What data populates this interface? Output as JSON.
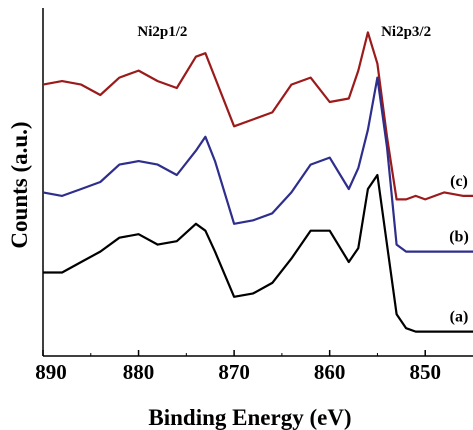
{
  "chart_data": {
    "type": "line",
    "xlabel": "Binding Energy (eV)",
    "ylabel": "Counts (a.u.)",
    "xlim": [
      890,
      845
    ],
    "xticks": [
      890,
      880,
      870,
      860,
      850
    ],
    "yticks_shown": false,
    "annotations": [
      {
        "text": "Ni2p1/2",
        "x": 877.5
      },
      {
        "text": "Ni2p3/2",
        "x": 852
      }
    ],
    "series": [
      {
        "label": "(c)",
        "color": "#9b1b1b",
        "x": [
          890,
          888,
          886,
          884,
          882,
          880,
          878,
          876,
          874,
          873,
          872,
          870,
          868,
          866,
          864,
          862,
          860,
          858,
          857,
          856,
          855,
          854,
          853,
          852,
          851,
          850,
          848,
          846,
          845
        ],
        "y": [
          0.78,
          0.79,
          0.78,
          0.75,
          0.8,
          0.82,
          0.79,
          0.77,
          0.86,
          0.87,
          0.8,
          0.66,
          0.68,
          0.7,
          0.78,
          0.8,
          0.73,
          0.74,
          0.82,
          0.93,
          0.84,
          0.63,
          0.45,
          0.45,
          0.46,
          0.45,
          0.47,
          0.46,
          0.46
        ]
      },
      {
        "label": "(b)",
        "color": "#2e2e8c",
        "x": [
          890,
          888,
          886,
          884,
          882,
          880,
          878,
          876,
          874,
          873,
          872,
          870,
          868,
          866,
          864,
          862,
          860,
          858,
          857,
          856,
          855,
          854,
          853,
          852,
          850,
          848,
          846,
          845
        ],
        "y": [
          0.47,
          0.46,
          0.48,
          0.5,
          0.55,
          0.56,
          0.55,
          0.52,
          0.59,
          0.63,
          0.56,
          0.38,
          0.39,
          0.41,
          0.47,
          0.55,
          0.57,
          0.48,
          0.54,
          0.65,
          0.8,
          0.6,
          0.32,
          0.3,
          0.3,
          0.3,
          0.3,
          0.3
        ]
      },
      {
        "label": "(a)",
        "color": "#000000",
        "x": [
          890,
          888,
          886,
          884,
          882,
          880,
          878,
          876,
          874,
          873,
          872,
          870,
          868,
          866,
          864,
          862,
          860,
          858,
          857,
          856,
          855,
          854,
          853,
          852,
          851,
          850,
          848,
          846,
          845
        ],
        "y": [
          0.24,
          0.24,
          0.27,
          0.3,
          0.34,
          0.35,
          0.32,
          0.33,
          0.38,
          0.36,
          0.3,
          0.17,
          0.18,
          0.21,
          0.28,
          0.36,
          0.36,
          0.27,
          0.31,
          0.48,
          0.52,
          0.32,
          0.12,
          0.08,
          0.07,
          0.07,
          0.07,
          0.07,
          0.07
        ]
      }
    ]
  }
}
